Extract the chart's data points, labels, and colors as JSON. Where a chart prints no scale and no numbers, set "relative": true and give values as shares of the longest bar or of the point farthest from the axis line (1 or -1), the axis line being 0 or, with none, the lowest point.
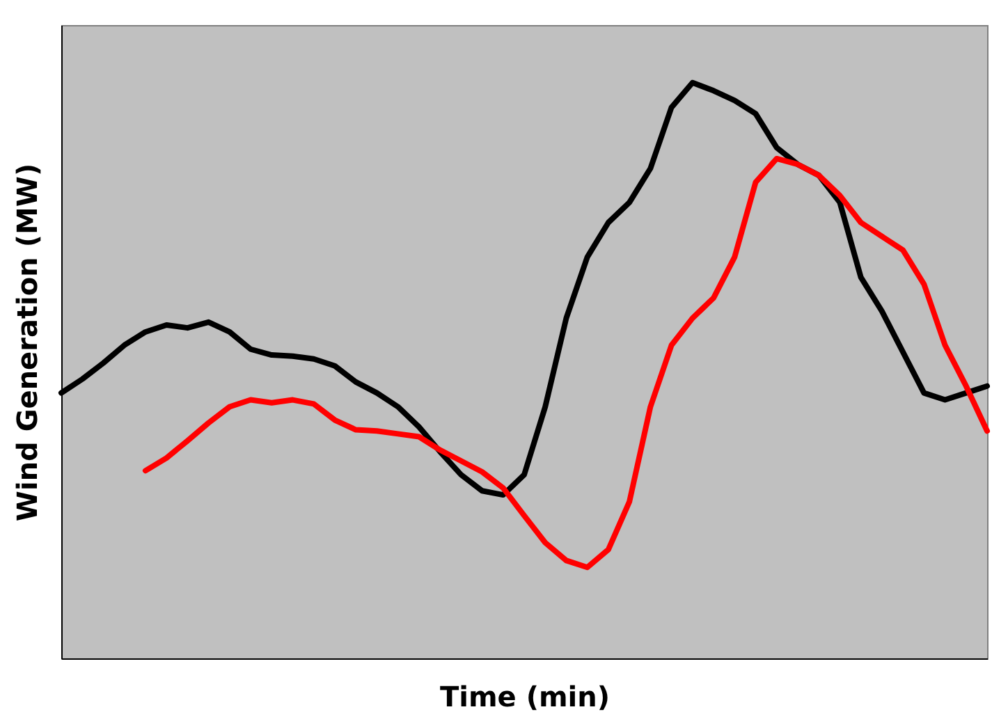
{
  "chart_data": {
    "type": "line",
    "relative": true,
    "xlabel": "Time (min)",
    "ylabel": "Wind Generation (MW)",
    "grid": false,
    "marker": "none",
    "line_style": "solid",
    "categories": [
      null,
      null,
      null,
      null,
      null,
      null,
      null,
      null,
      null,
      null,
      null,
      null,
      null,
      null,
      null,
      null,
      null,
      null,
      null,
      null,
      null,
      null,
      null,
      null,
      null,
      null,
      null,
      null,
      null,
      null,
      null,
      null,
      null,
      null,
      null,
      null,
      null,
      null,
      null,
      null,
      null,
      null,
      null,
      null,
      null
    ],
    "series": [
      {
        "color": "#000000",
        "values": [
          0.461,
          0.485,
          0.513,
          0.544,
          0.567,
          0.579,
          0.574,
          0.584,
          0.567,
          0.537,
          0.527,
          0.525,
          0.52,
          0.508,
          0.48,
          0.461,
          0.437,
          0.402,
          0.359,
          0.319,
          0.291,
          0.284,
          0.319,
          0.437,
          0.591,
          0.697,
          0.757,
          0.792,
          0.851,
          0.957,
          1,
          0.986,
          0.969,
          0.946,
          0.887,
          0.858,
          0.839,
          0.792,
          0.662,
          0.603,
          0.532,
          0.461,
          0.449,
          0.461,
          0.473
        ]
      },
      {
        "color": "#ff0000",
        "values": [
          null,
          null,
          null,
          null,
          0.326,
          0.348,
          0.378,
          0.409,
          0.437,
          0.449,
          0.444,
          0.449,
          0.442,
          0.414,
          0.397,
          0.395,
          0.39,
          0.385,
          0.362,
          0.343,
          0.324,
          0.296,
          0.248,
          0.201,
          0.17,
          0.158,
          0.189,
          0.272,
          0.437,
          0.544,
          0.591,
          0.626,
          0.697,
          0.827,
          0.868,
          0.858,
          0.839,
          0.804,
          0.757,
          0.733,
          0.709,
          0.65,
          0.544,
          0.473,
          0.395
        ]
      }
    ]
  }
}
